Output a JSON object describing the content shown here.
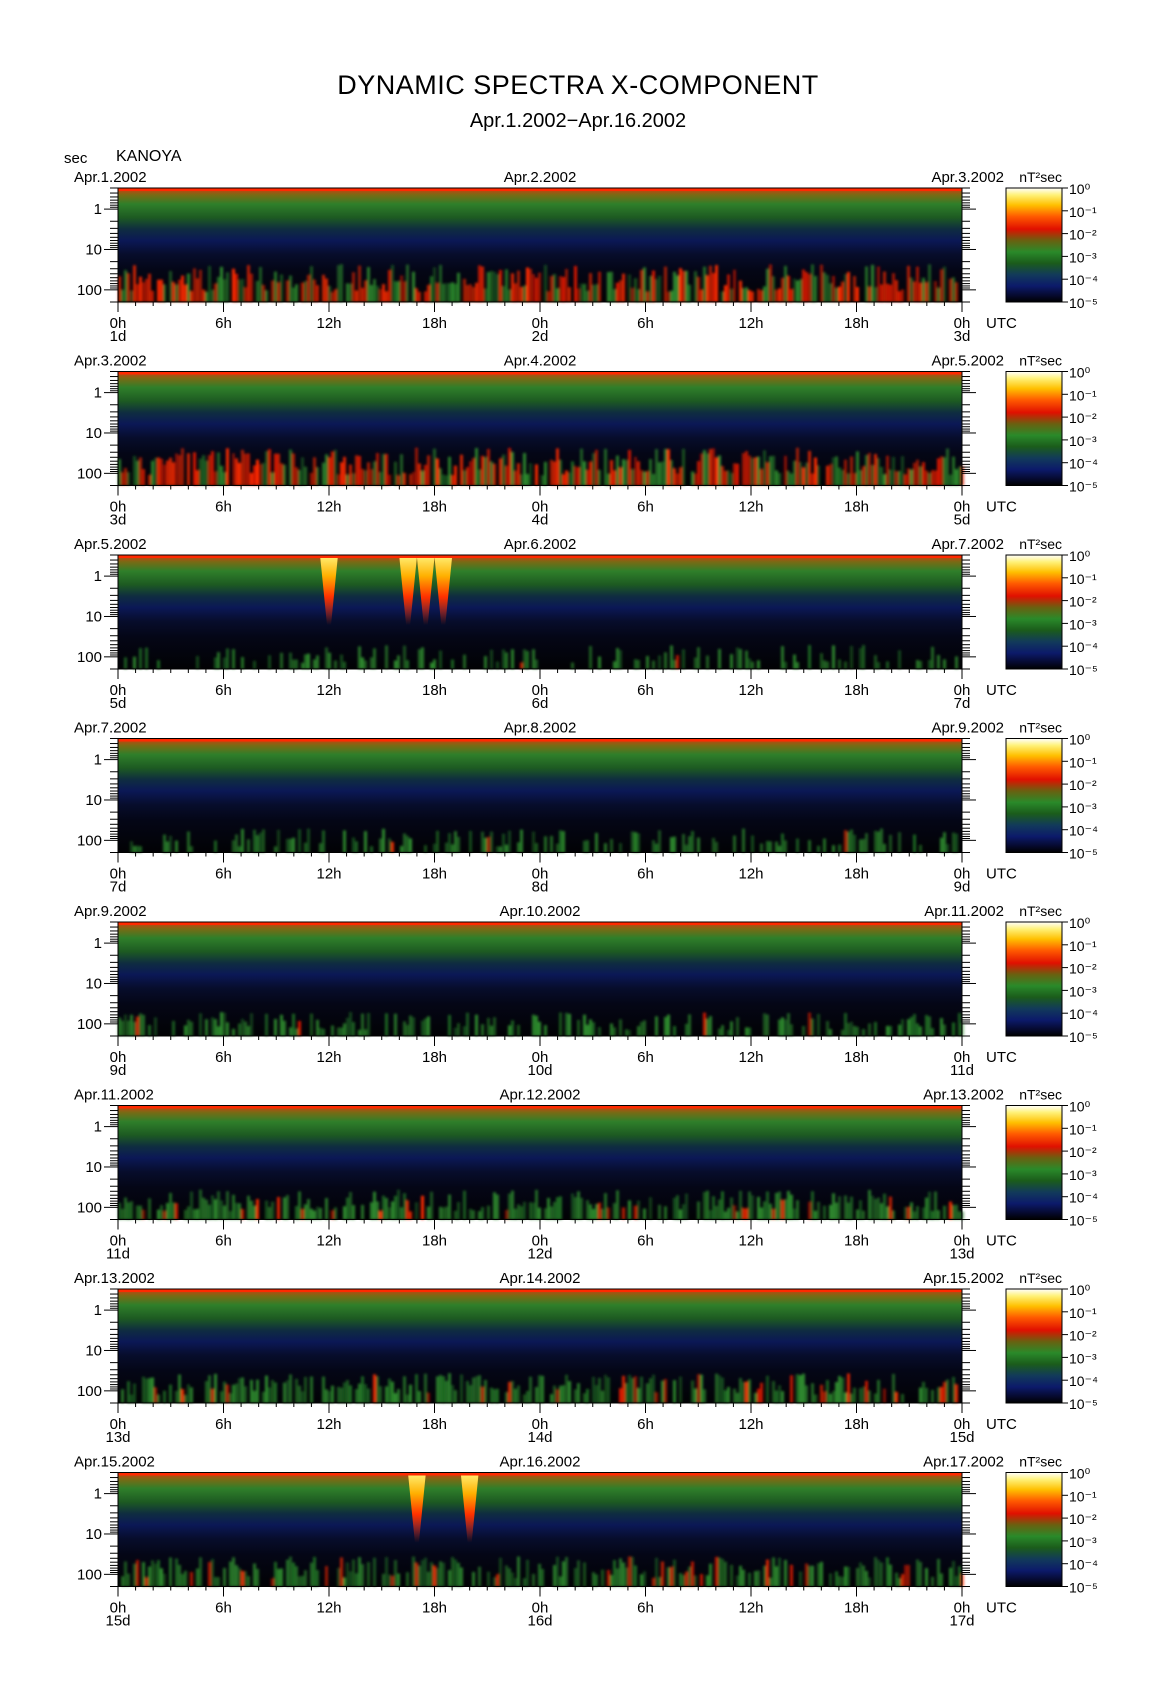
{
  "title": "DYNAMIC SPECTRA X-COMPONENT",
  "subtitle": "Apr.1.2002−Apr.16.2002",
  "ylabel": "sec",
  "station": "KANOYA",
  "colorbar_unit": "nT²sec",
  "colors": {
    "background": "#000000",
    "green": "#2e8b2e",
    "red": "#ff2a00",
    "orange": "#ff8c00",
    "yellow": "#ffe14a",
    "navy": "#0a1650"
  },
  "chart_data": {
    "type": "heatmap",
    "x_axis": {
      "ticks": [
        "0h",
        "6h",
        "12h",
        "18h",
        "0h",
        "6h",
        "12h",
        "18h",
        "0h"
      ],
      "unit": "UTC"
    },
    "y_axis": {
      "ticks": [
        "1",
        "10",
        "100"
      ],
      "unit": "sec",
      "scale": "log",
      "inverted": true
    },
    "colorbar": {
      "ticks": [
        "10⁰",
        "10⁻¹",
        "10⁻²",
        "10⁻³",
        "10⁻⁴",
        "10⁻⁵"
      ],
      "unit": "nT²sec",
      "scale": "log"
    },
    "panels": [
      {
        "left_date": "Apr.1.2002",
        "mid_date": "Apr.2.2002",
        "right_date": "Apr.3.2002",
        "day_labels": [
          "1d",
          "2d",
          "3d"
        ],
        "activity": "high",
        "bursts": []
      },
      {
        "left_date": "Apr.3.2002",
        "mid_date": "Apr.4.2002",
        "right_date": "Apr.5.2002",
        "day_labels": [
          "3d",
          "4d",
          "5d"
        ],
        "activity": "high",
        "bursts": []
      },
      {
        "left_date": "Apr.5.2002",
        "mid_date": "Apr.6.2002",
        "right_date": "Apr.7.2002",
        "day_labels": [
          "5d",
          "6d",
          "7d"
        ],
        "activity": "low",
        "bursts": [
          12,
          16.5,
          17.5,
          18.5
        ]
      },
      {
        "left_date": "Apr.7.2002",
        "mid_date": "Apr.8.2002",
        "right_date": "Apr.9.2002",
        "day_labels": [
          "7d",
          "8d",
          "9d"
        ],
        "activity": "low",
        "bursts": []
      },
      {
        "left_date": "Apr.9.2002",
        "mid_date": "Apr.10.2002",
        "right_date": "Apr.11.2002",
        "day_labels": [
          "9d",
          "10d",
          "11d"
        ],
        "activity": "low",
        "bursts": []
      },
      {
        "left_date": "Apr.11.2002",
        "mid_date": "Apr.12.2002",
        "right_date": "Apr.13.2002",
        "day_labels": [
          "11d",
          "12d",
          "13d"
        ],
        "activity": "medium",
        "bursts": []
      },
      {
        "left_date": "Apr.13.2002",
        "mid_date": "Apr.14.2002",
        "right_date": "Apr.15.2002",
        "day_labels": [
          "13d",
          "14d",
          "15d"
        ],
        "activity": "medium",
        "bursts": []
      },
      {
        "left_date": "Apr.15.2002",
        "mid_date": "Apr.16.2002",
        "right_date": "Apr.17.2002",
        "day_labels": [
          "15d",
          "16d",
          "17d"
        ],
        "activity": "medium",
        "bursts": [
          17,
          20
        ]
      }
    ]
  }
}
